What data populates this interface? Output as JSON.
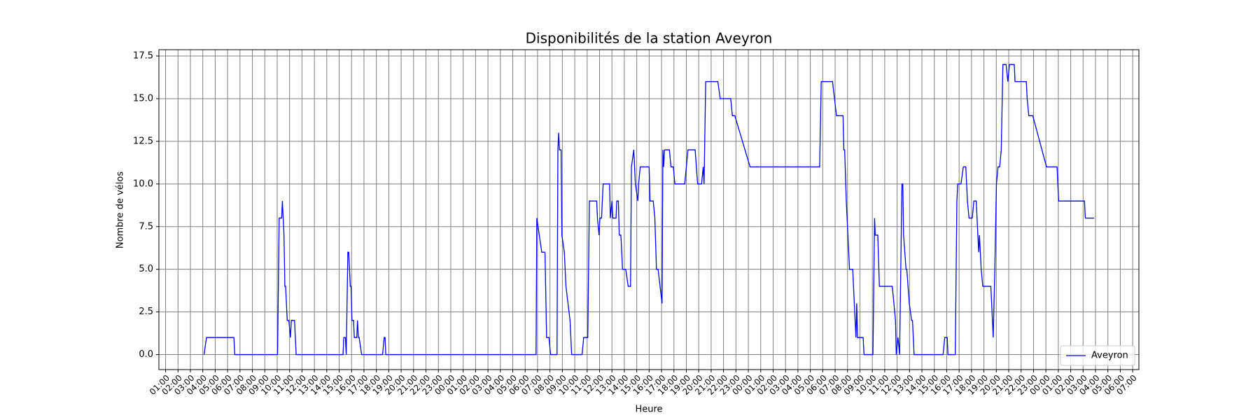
{
  "chart_data": {
    "type": "line",
    "title": "Disponibilités de la station Aveyron",
    "xlabel": "Heure",
    "ylabel": "Nombre de vélos",
    "x": [
      4.1,
      4.3,
      6.51,
      6.58,
      10.03,
      10.16,
      10.36,
      10.42,
      10.55,
      10.62,
      10.68,
      10.81,
      10.94,
      11.07,
      11.14,
      11.4,
      11.53,
      15.31,
      15.37,
      15.5,
      15.57,
      15.7,
      15.77,
      15.9,
      15.96,
      16.03,
      16.16,
      16.22,
      16.42,
      16.48,
      16.55,
      16.61,
      16.81,
      18.5,
      18.63,
      18.7,
      18.76,
      30.88,
      30.94,
      31.14,
      31.34,
      31.6,
      31.73,
      31.92,
      32.05,
      32.57,
      32.64,
      32.7,
      32.77,
      32.9,
      32.96,
      33.16,
      33.29,
      33.62,
      33.75,
      34.59,
      34.72,
      35.05,
      35.18,
      35.77,
      35.83,
      35.96,
      36.03,
      36.16,
      36.29,
      36.81,
      36.87,
      37.0,
      37.07,
      37.33,
      37.39,
      37.52,
      37.59,
      37.72,
      37.79,
      37.85,
      38.11,
      38.31,
      38.5,
      38.57,
      38.76,
      38.89,
      39.09,
      39.15,
      39.28,
      40.0,
      40.07,
      40.33,
      40.46,
      40.59,
      40.72,
      41.04,
      41.11,
      41.17,
      41.24,
      41.63,
      41.76,
      41.95,
      42.08,
      42.87,
      43.13,
      43.71,
      43.91,
      44.23,
      44.36,
      44.43,
      44.56,
      45.54,
      45.73,
      46.58,
      46.71,
      46.91,
      48.14,
      53.75,
      53.88,
      54.79,
      55.11,
      55.64,
      55.7,
      55.77,
      55.9,
      56.03,
      56.16,
      56.42,
      56.61,
      56.68,
      56.74,
      56.81,
      57.26,
      57.33,
      58.05,
      58.18,
      58.24,
      58.44,
      58.57,
      59.61,
      59.87,
      59.93,
      60.07,
      60.2,
      60.39,
      60.46,
      60.52,
      60.72,
      60.78,
      60.98,
      61.17,
      61.24,
      61.37,
      63.71,
      63.84,
      64.04,
      64.1,
      64.69,
      64.82,
      64.89,
      65.15,
      65.34,
      65.54,
      65.67,
      65.8,
      66.06,
      66.19,
      66.38,
      66.58,
      66.64,
      66.78,
      66.91,
      67.56,
      67.75,
      67.88,
      68.01,
      68.14,
      68.27,
      68.4,
      68.53,
      68.79,
      68.93,
      69.06,
      69.45,
      69.51,
      70.42,
      70.49,
      70.62,
      70.94,
      72.05,
      72.9,
      72.96,
      73.03,
      75.11,
      75.18,
      75.9
    ],
    "series": [
      {
        "name": "Aveyron",
        "color": "#0000ff",
        "values": [
          0,
          1,
          1,
          0,
          0,
          8,
          8,
          9,
          7,
          4,
          4,
          2,
          2,
          1,
          2,
          2,
          0,
          0,
          1,
          1,
          0,
          6,
          6,
          4,
          4,
          2,
          2,
          1,
          1,
          2,
          1,
          1,
          0,
          0,
          1,
          1,
          0,
          0,
          8,
          7,
          6,
          6,
          1,
          1,
          0,
          0,
          12,
          13,
          12,
          12,
          7,
          6,
          4,
          2,
          0,
          0,
          1,
          1,
          9,
          9,
          8,
          7,
          8,
          8,
          10,
          10,
          8,
          9,
          8,
          8,
          9,
          9,
          7,
          7,
          6,
          5,
          5,
          4,
          4,
          11,
          12,
          10,
          9,
          10,
          11,
          11,
          9,
          9,
          8,
          5,
          5,
          3,
          12,
          11,
          12,
          12,
          11,
          11,
          10,
          10,
          12,
          12,
          10,
          10,
          11,
          10,
          16,
          16,
          15,
          15,
          14,
          14,
          11,
          11,
          16,
          16,
          14,
          14,
          12,
          12,
          9,
          7,
          5,
          5,
          2,
          1,
          3,
          1,
          1,
          0,
          0,
          8,
          7,
          7,
          4,
          4,
          2,
          0,
          1,
          0,
          10,
          10,
          7,
          5,
          5,
          3,
          2,
          2,
          0,
          0,
          1,
          1,
          0,
          0,
          9,
          10,
          10,
          11,
          11,
          9,
          8,
          8,
          9,
          9,
          6,
          7,
          5,
          4,
          4,
          1,
          5,
          10,
          11,
          11,
          12,
          17,
          17,
          16,
          17,
          17,
          16,
          16,
          15,
          14,
          14,
          11,
          11,
          10,
          9,
          9,
          8,
          8
        ]
      }
    ],
    "xlim": [
      0.46,
      79.5
    ],
    "ylim": [
      -0.88,
      17.87
    ],
    "yticks": [
      {
        "value": 0,
        "label": "0.0"
      },
      2.5,
      {
        "value": 5,
        "label": "5.0"
      },
      7.5,
      {
        "value": 10,
        "label": "10.0"
      },
      12.5,
      {
        "value": 15,
        "label": "15.0"
      },
      17.5
    ],
    "xticks": [
      {
        "value": 1,
        "label": "01:00"
      },
      {
        "value": 2,
        "label": "02:00"
      },
      {
        "value": 3,
        "label": "03:00"
      },
      {
        "value": 4,
        "label": "04:00"
      },
      {
        "value": 5,
        "label": "05:00"
      },
      {
        "value": 6,
        "label": "06:00"
      },
      {
        "value": 7,
        "label": "07:00"
      },
      {
        "value": 8,
        "label": "08:00"
      },
      {
        "value": 9,
        "label": "09:00"
      },
      {
        "value": 10,
        "label": "10:00"
      },
      {
        "value": 11,
        "label": "11:00"
      },
      {
        "value": 12,
        "label": "12:00"
      },
      {
        "value": 13,
        "label": "13:00"
      },
      {
        "value": 14,
        "label": "14:00"
      },
      {
        "value": 15,
        "label": "15:00"
      },
      {
        "value": 16,
        "label": "16:00"
      },
      {
        "value": 17,
        "label": "17:00"
      },
      {
        "value": 18,
        "label": "18:00"
      },
      {
        "value": 19,
        "label": "19:00"
      },
      {
        "value": 20,
        "label": "20:00"
      },
      {
        "value": 21,
        "label": "21:00"
      },
      {
        "value": 22,
        "label": "22:00"
      },
      {
        "value": 23,
        "label": "23:00"
      },
      {
        "value": 24,
        "label": "00:00"
      },
      {
        "value": 25,
        "label": "01:00"
      },
      {
        "value": 26,
        "label": "02:00"
      },
      {
        "value": 27,
        "label": "03:00"
      },
      {
        "value": 28,
        "label": "04:00"
      },
      {
        "value": 29,
        "label": "05:00"
      },
      {
        "value": 30,
        "label": "06:00"
      },
      {
        "value": 31,
        "label": "07:00"
      },
      {
        "value": 32,
        "label": "08:00"
      },
      {
        "value": 33,
        "label": "09:00"
      },
      {
        "value": 34,
        "label": "10:00"
      },
      {
        "value": 35,
        "label": "11:00"
      },
      {
        "value": 36,
        "label": "12:00"
      },
      {
        "value": 37,
        "label": "13:00"
      },
      {
        "value": 38,
        "label": "14:00"
      },
      {
        "value": 39,
        "label": "15:00"
      },
      {
        "value": 40,
        "label": "16:00"
      },
      {
        "value": 41,
        "label": "17:00"
      },
      {
        "value": 42,
        "label": "18:00"
      },
      {
        "value": 43,
        "label": "19:00"
      },
      {
        "value": 44,
        "label": "20:00"
      },
      {
        "value": 45,
        "label": "21:00"
      },
      {
        "value": 46,
        "label": "22:00"
      },
      {
        "value": 47,
        "label": "23:00"
      },
      {
        "value": 48,
        "label": "00:00"
      },
      {
        "value": 49,
        "label": "01:00"
      },
      {
        "value": 50,
        "label": "02:00"
      },
      {
        "value": 51,
        "label": "03:00"
      },
      {
        "value": 52,
        "label": "04:00"
      },
      {
        "value": 53,
        "label": "05:00"
      },
      {
        "value": 54,
        "label": "06:00"
      },
      {
        "value": 55,
        "label": "07:00"
      },
      {
        "value": 56,
        "label": "08:00"
      },
      {
        "value": 57,
        "label": "09:00"
      },
      {
        "value": 58,
        "label": "10:00"
      },
      {
        "value": 59,
        "label": "11:00"
      },
      {
        "value": 60,
        "label": "12:00"
      },
      {
        "value": 61,
        "label": "13:00"
      },
      {
        "value": 62,
        "label": "14:00"
      },
      {
        "value": 63,
        "label": "15:00"
      },
      {
        "value": 64,
        "label": "16:00"
      },
      {
        "value": 65,
        "label": "17:00"
      },
      {
        "value": 66,
        "label": "18:00"
      },
      {
        "value": 67,
        "label": "19:00"
      },
      {
        "value": 68,
        "label": "20:00"
      },
      {
        "value": 69,
        "label": "21:00"
      },
      {
        "value": 70,
        "label": "22:00"
      },
      {
        "value": 71,
        "label": "23:00"
      },
      {
        "value": 72,
        "label": "00:00"
      },
      {
        "value": 73,
        "label": "01:00"
      },
      {
        "value": 74,
        "label": "02:00"
      },
      {
        "value": 75,
        "label": "03:00"
      },
      {
        "value": 76,
        "label": "04:00"
      },
      {
        "value": 77,
        "label": "05:00"
      },
      {
        "value": 78,
        "label": "06:00"
      },
      {
        "value": 79,
        "label": "07:00"
      }
    ],
    "grid": true,
    "legend": "lower right"
  }
}
